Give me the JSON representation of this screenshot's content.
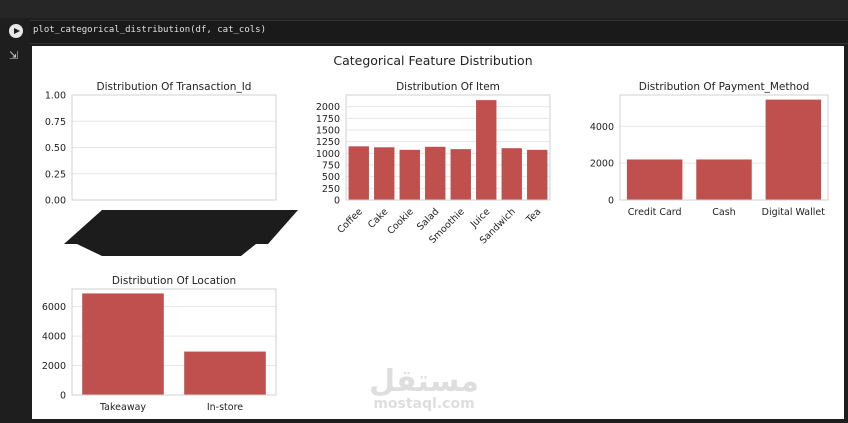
{
  "notebook": {
    "code_line": "plot_categorical_distribution(df, cat_cols)"
  },
  "figure": {
    "suptitle": "Categorical Feature Distribution"
  },
  "colors": {
    "bar": "#c0504d",
    "grid": "#e6e6e6",
    "frame": "#d0d0d0"
  },
  "watermark": {
    "arabic": "مستقل",
    "latin": "mostaql.com"
  },
  "chart_data": [
    {
      "type": "bar",
      "title": "Distribution Of Transaction_Id",
      "categories": [],
      "values": [],
      "ylim": [
        0,
        1
      ],
      "yticks": [
        "0.00",
        "0.25",
        "0.50",
        "0.75",
        "1.00"
      ],
      "xticklabels_overplotted": true
    },
    {
      "type": "bar",
      "title": "Distribution Of Item",
      "categories": [
        "Coffee",
        "Cake",
        "Cookie",
        "Salad",
        "Smoothie",
        "Juice",
        "Sandwich",
        "Tea"
      ],
      "values": [
        1150,
        1130,
        1075,
        1140,
        1090,
        2140,
        1110,
        1075
      ],
      "ylim": [
        0,
        2250
      ],
      "yticks": [
        "0",
        "250",
        "500",
        "750",
        "1000",
        "1250",
        "1500",
        "1750",
        "2000"
      ]
    },
    {
      "type": "bar",
      "title": "Distribution Of Payment_Method",
      "categories": [
        "Credit Card",
        "Cash",
        "Digital Wallet"
      ],
      "values": [
        2200,
        2200,
        5450
      ],
      "ylim": [
        0,
        5700
      ],
      "yticks": [
        "0",
        "2000",
        "4000"
      ]
    },
    {
      "type": "bar",
      "title": "Distribution Of Location",
      "categories": [
        "Takeaway",
        "In-store"
      ],
      "values": [
        6900,
        2950
      ],
      "ylim": [
        0,
        7200
      ],
      "yticks": [
        "0",
        "2000",
        "4000",
        "6000"
      ]
    }
  ]
}
